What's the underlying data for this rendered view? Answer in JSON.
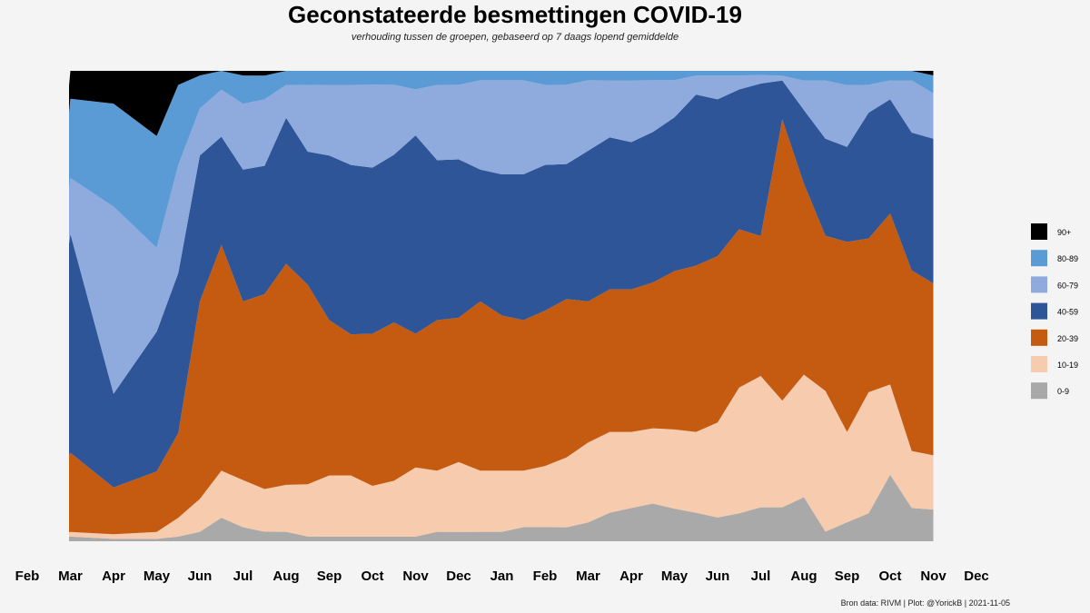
{
  "chart_data": {
    "type": "area",
    "stacked": true,
    "normalized": true,
    "title": "Geconstateerde besmettingen COVID-19",
    "subtitle": "verhouding tussen de groepen, gebaseerd op 7 daags lopend gemiddelde",
    "caption": "Bron data: RIVM  | Plot: @YorickB |  2021-11-05",
    "x_tick_labels": [
      "Feb",
      "Mar",
      "Apr",
      "May",
      "Jun",
      "Jul",
      "Aug",
      "Sep",
      "Oct",
      "Nov",
      "Dec",
      "Jan",
      "Feb",
      "Mar",
      "Apr",
      "May",
      "Jun",
      "Jul",
      "Aug",
      "Sep",
      "Oct",
      "Nov",
      "Dec"
    ],
    "x_start_month": "2020-02",
    "x_months": [
      0.0,
      1.0,
      2.0,
      3.0,
      3.5,
      4.0,
      4.5,
      5.0,
      5.5,
      6.0,
      6.5,
      7.0,
      7.5,
      8.0,
      8.5,
      9.0,
      9.5,
      10.0,
      10.5,
      11.0,
      11.5,
      12.0,
      12.5,
      13.0,
      13.5,
      14.0,
      14.5,
      15.0,
      15.5,
      16.0,
      16.5,
      17.0,
      17.5,
      18.0,
      18.5,
      19.0,
      19.5,
      20.0,
      20.5,
      21.0
    ],
    "x_range_months": [
      1.0,
      21.15
    ],
    "legend_position": "right",
    "series": [
      {
        "name": "0-9",
        "color": "#a9a9a9",
        "values": [
          0.0,
          0.01,
          0.005,
          0.005,
          0.01,
          0.02,
          0.05,
          0.03,
          0.02,
          0.02,
          0.01,
          0.01,
          0.01,
          0.01,
          0.01,
          0.01,
          0.02,
          0.02,
          0.02,
          0.02,
          0.03,
          0.03,
          0.03,
          0.04,
          0.06,
          0.07,
          0.08,
          0.07,
          0.06,
          0.05,
          0.06,
          0.08,
          0.07,
          0.09,
          0.02,
          0.04,
          0.06,
          0.14,
          0.07,
          0.07
        ]
      },
      {
        "name": "10-19",
        "color": "#f7cbae",
        "values": [
          0.0,
          0.01,
          0.01,
          0.015,
          0.04,
          0.07,
          0.1,
          0.1,
          0.09,
          0.1,
          0.11,
          0.13,
          0.13,
          0.11,
          0.12,
          0.15,
          0.13,
          0.15,
          0.13,
          0.13,
          0.12,
          0.13,
          0.15,
          0.17,
          0.17,
          0.16,
          0.16,
          0.17,
          0.17,
          0.2,
          0.27,
          0.31,
          0.22,
          0.25,
          0.29,
          0.19,
          0.26,
          0.19,
          0.12,
          0.12
        ]
      },
      {
        "name": "20-39",
        "color": "#c55a11",
        "values": [
          0.0,
          0.17,
          0.1,
          0.13,
          0.18,
          0.42,
          0.48,
          0.38,
          0.41,
          0.47,
          0.42,
          0.33,
          0.3,
          0.33,
          0.34,
          0.29,
          0.32,
          0.31,
          0.36,
          0.33,
          0.32,
          0.33,
          0.34,
          0.3,
          0.3,
          0.3,
          0.31,
          0.34,
          0.35,
          0.35,
          0.34,
          0.33,
          0.58,
          0.39,
          0.32,
          0.4,
          0.33,
          0.36,
          0.38,
          0.38
        ]
      },
      {
        "name": "40-59",
        "color": "#2e5597",
        "values": [
          0.0,
          0.47,
          0.2,
          0.3,
          0.34,
          0.31,
          0.23,
          0.28,
          0.27,
          0.31,
          0.28,
          0.35,
          0.36,
          0.36,
          0.36,
          0.43,
          0.34,
          0.34,
          0.28,
          0.3,
          0.31,
          0.31,
          0.29,
          0.32,
          0.32,
          0.31,
          0.32,
          0.33,
          0.36,
          0.33,
          0.3,
          0.36,
          0.08,
          0.15,
          0.2,
          0.2,
          0.27,
          0.24,
          0.29,
          0.32
        ]
      },
      {
        "name": "60-79",
        "color": "#8faadc",
        "values": [
          0.0,
          0.12,
          0.4,
          0.18,
          0.23,
          0.1,
          0.1,
          0.14,
          0.14,
          0.07,
          0.14,
          0.15,
          0.17,
          0.18,
          0.15,
          0.1,
          0.16,
          0.16,
          0.19,
          0.2,
          0.2,
          0.17,
          0.17,
          0.15,
          0.12,
          0.13,
          0.11,
          0.08,
          0.04,
          0.05,
          0.03,
          0.02,
          0.01,
          0.06,
          0.12,
          0.13,
          0.06,
          0.04,
          0.11,
          0.1
        ]
      },
      {
        "name": "80-89",
        "color": "#5b9bd5",
        "values": [
          0.0,
          0.17,
          0.22,
          0.24,
          0.17,
          0.07,
          0.04,
          0.06,
          0.05,
          0.03,
          0.03,
          0.03,
          0.03,
          0.03,
          0.03,
          0.04,
          0.03,
          0.03,
          0.02,
          0.02,
          0.02,
          0.03,
          0.03,
          0.02,
          0.02,
          0.02,
          0.02,
          0.02,
          0.01,
          0.01,
          0.01,
          0.01,
          0.01,
          0.02,
          0.02,
          0.03,
          0.03,
          0.02,
          0.02,
          0.04
        ]
      },
      {
        "name": "90+",
        "color": "#000000",
        "values": [
          0.0,
          0.06,
          0.07,
          0.14,
          0.03,
          0.01,
          0.0,
          0.01,
          0.01,
          0.0,
          0.0,
          0.0,
          0.0,
          0.0,
          0.0,
          0.0,
          0.0,
          0.0,
          0.0,
          0.0,
          0.0,
          0.0,
          0.0,
          0.0,
          0.0,
          0.0,
          0.0,
          0.0,
          0.0,
          0.0,
          0.0,
          0.0,
          0.0,
          0.0,
          0.0,
          0.0,
          0.0,
          0.0,
          0.0,
          0.01
        ]
      }
    ],
    "legend_order": [
      "90+",
      "80-89",
      "60-79",
      "40-59",
      "20-39",
      "10-19",
      "0-9"
    ]
  }
}
